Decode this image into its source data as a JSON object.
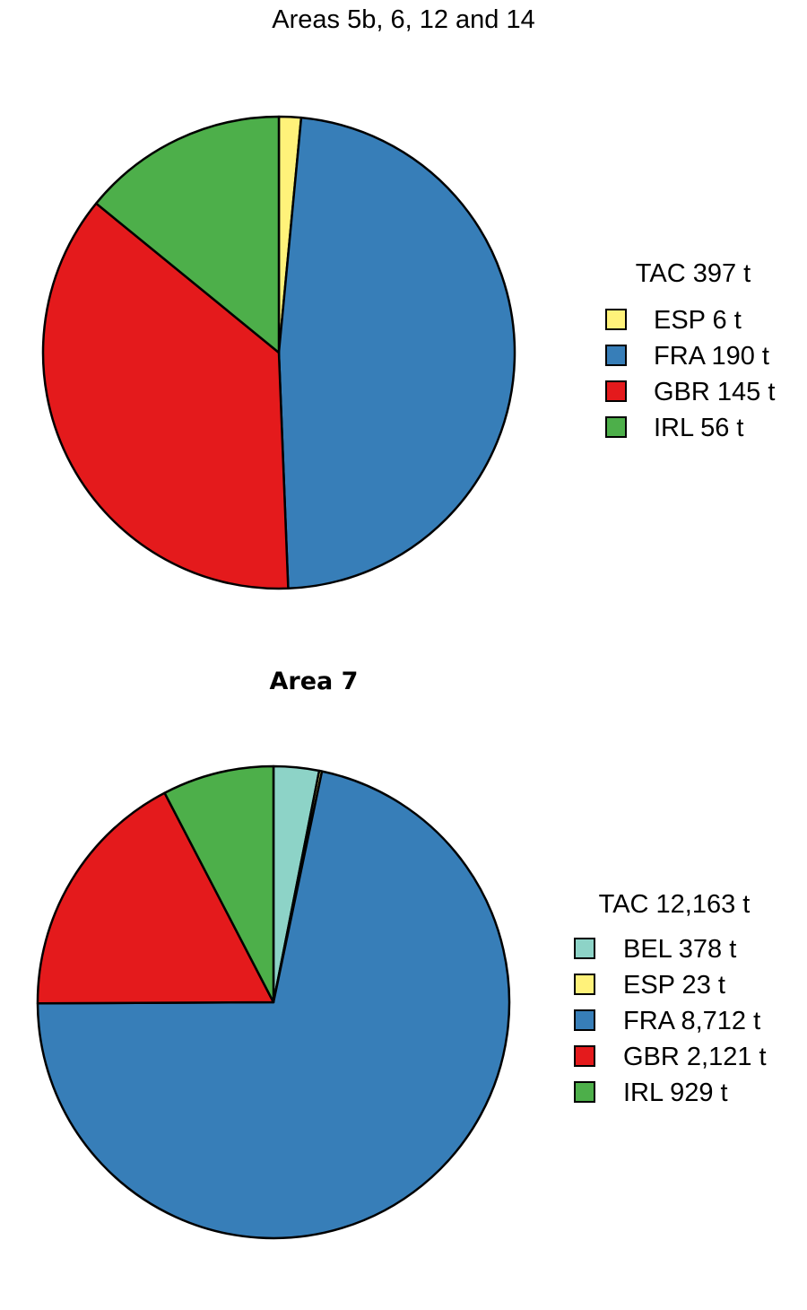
{
  "chart_data": [
    {
      "type": "pie",
      "title": "Areas 5b, 6, 12 and 14",
      "legend_title": "TAC 397 t",
      "legend_placement": "right",
      "start_angle_deg": 90,
      "direction": "clockwise",
      "slices": [
        {
          "label": "ESP 6 t",
          "value": 6,
          "color": "#FFF27A"
        },
        {
          "label": "FRA 190 t",
          "value": 190,
          "color": "#377EB8"
        },
        {
          "label": "GBR 145 t",
          "value": 145,
          "color": "#E41A1C"
        },
        {
          "label": "IRL 56 t",
          "value": 56,
          "color": "#4DAF4A"
        }
      ]
    },
    {
      "type": "pie",
      "title": "Area 7",
      "legend_title": "TAC 12,163 t",
      "legend_placement": "right",
      "start_angle_deg": 90,
      "direction": "clockwise",
      "slices": [
        {
          "label": "BEL 378 t",
          "value": 378,
          "color": "#8DD3C7"
        },
        {
          "label": "ESP 23 t",
          "value": 23,
          "color": "#FFF27A"
        },
        {
          "label": "FRA 8,712 t",
          "value": 8712,
          "color": "#377EB8"
        },
        {
          "label": "GBR 2,121 t",
          "value": 2121,
          "color": "#E41A1C"
        },
        {
          "label": "IRL 929 t",
          "value": 929,
          "color": "#4DAF4A"
        }
      ]
    }
  ]
}
